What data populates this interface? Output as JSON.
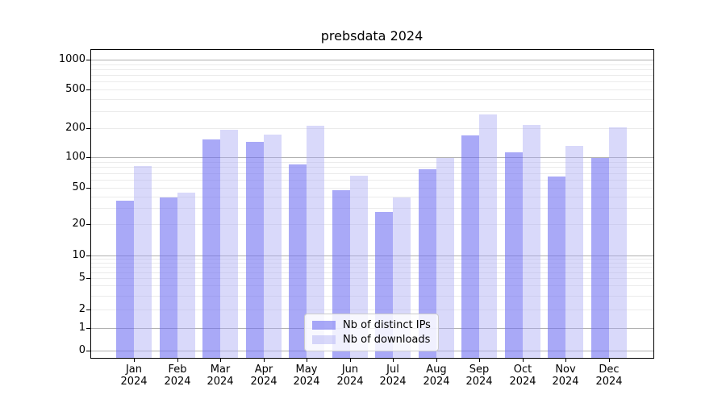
{
  "chart": {
    "title": "prebsdata 2024"
  },
  "chart_data": {
    "type": "bar",
    "title": "prebsdata 2024",
    "categories": [
      "Jan",
      "Feb",
      "Mar",
      "Apr",
      "May",
      "Jun",
      "Jul",
      "Aug",
      "Sep",
      "Oct",
      "Nov",
      "Dec"
    ],
    "category_year": "2024",
    "series": [
      {
        "name": "Nb of distinct IPs",
        "color": "#a9a9f7",
        "fill_css": "rgba(112,112,242,0.60)",
        "values": [
          36,
          39,
          152,
          145,
          85,
          47,
          27,
          76,
          168,
          112,
          64,
          98
        ]
      },
      {
        "name": "Nb of downloads",
        "color": "#d9d9fa",
        "fill_css": "rgba(171,171,244,0.45)",
        "values": [
          82,
          44,
          192,
          172,
          212,
          66,
          39,
          99,
          275,
          214,
          131,
          202
        ]
      }
    ],
    "xlabel": "",
    "ylabel": "",
    "yscale": "symlog",
    "yticks": [
      1000,
      500,
      200,
      100,
      50,
      20,
      10,
      5,
      2,
      1,
      0
    ],
    "ylim": [
      0,
      1280
    ],
    "grid": "on",
    "legend_position": "lower center",
    "colors": {
      "grid_major": "#b0b0b0",
      "grid_minor": "#ebebeb",
      "axis": "#000000",
      "legend_border": "#cccccc"
    }
  }
}
